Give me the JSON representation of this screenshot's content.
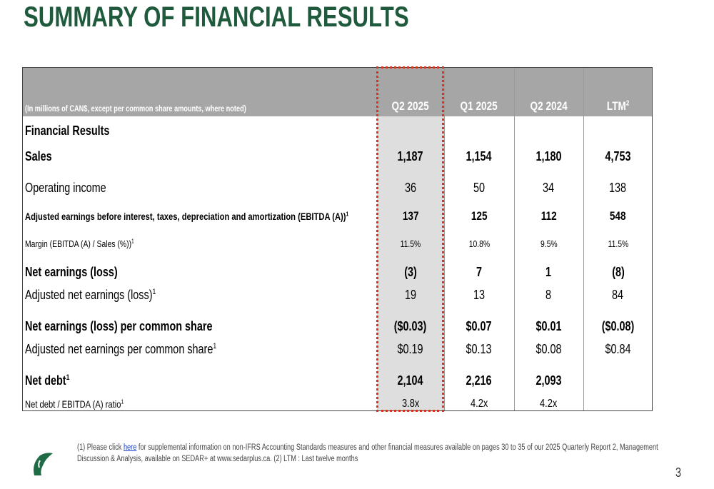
{
  "title": "SUMMARY OF FINANCIAL RESULTS",
  "table": {
    "note": "(In millions of CAN$, except per common share amounts, where noted)",
    "columns": [
      "Q2 2025",
      "Q1 2025",
      "Q2 2024",
      "LTM"
    ],
    "ltm_sup": "2",
    "rows": [
      {
        "label": "Financial Results",
        "sup": "",
        "values": [
          "",
          "",
          "",
          ""
        ]
      },
      {
        "label": "Sales",
        "sup": "",
        "values": [
          "1,187",
          "1,154",
          "1,180",
          "4,753"
        ]
      },
      {
        "label": "Operating income",
        "sup": "",
        "values": [
          "36",
          "50",
          "34",
          "138"
        ]
      },
      {
        "label": "Adjusted earnings before interest, taxes, depreciation and amortization (EBITDA (A))",
        "sup": "1",
        "values": [
          "137",
          "125",
          "112",
          "548"
        ]
      },
      {
        "label": "Margin (EBITDA (A) / Sales (%))",
        "sup": "1",
        "values": [
          "11.5%",
          "10.8%",
          "9.5%",
          "11.5%"
        ]
      },
      {
        "label": "Net earnings (loss)",
        "sup": "",
        "values": [
          "(3)",
          "7",
          "1",
          "(8)"
        ]
      },
      {
        "label": "Adjusted net earnings (loss)",
        "sup": "1",
        "values": [
          "19",
          "13",
          "8",
          "84"
        ]
      },
      {
        "label": "Net earnings (loss) per common share",
        "sup": "",
        "values": [
          "($0.03)",
          "$0.07",
          "$0.01",
          "($0.08)"
        ]
      },
      {
        "label": "Adjusted net earnings per common share",
        "sup": "1",
        "values": [
          "$0.19",
          "$0.13",
          "$0.08",
          "$0.84"
        ]
      },
      {
        "label": "Net debt",
        "sup": "1",
        "values": [
          "2,104",
          "2,216",
          "2,093",
          ""
        ]
      },
      {
        "label": "Net debt / EBITDA (A) ratio",
        "sup": "1",
        "values": [
          "3.8x",
          "4.2x",
          "4.2x",
          ""
        ]
      }
    ]
  },
  "footnote": {
    "prefix": "(1) Please click ",
    "link": "here",
    "suffix": " for supplemental information on non-IFRS Accounting Standards measures and other financial measures available on pages 30 to 35 of our 2025 Quarterly Report 2, Management Discussion & Analysis, available on SEDAR+ at www.sedarplus.ca. (2) LTM : Last twelve months"
  },
  "page_number": "3",
  "colors": {
    "title": "#1f5a3d",
    "header": "#a6a6a6",
    "highlight": "#d9321f",
    "logo": "#1f6b45"
  }
}
